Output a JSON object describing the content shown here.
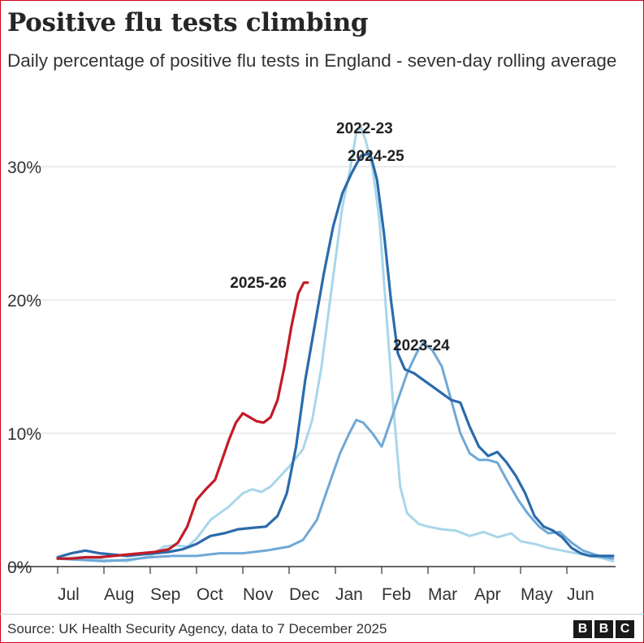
{
  "header": {
    "title": "Positive flu tests climbing",
    "subtitle": "Daily percentage of positive flu tests in England - seven-day rolling average"
  },
  "footer": {
    "source": "Source: UK Health Security Agency, data to 7 December 2025",
    "logo_letters": [
      "B",
      "B",
      "C"
    ]
  },
  "chart_data": {
    "type": "line",
    "title": "Positive flu tests climbing",
    "subtitle": "Daily percentage of positive flu tests in England - seven-day rolling average",
    "xlabel": "",
    "ylabel": "",
    "x_unit": "month (0 = start of Jul)",
    "categories": [
      "Jul",
      "Aug",
      "Sep",
      "Oct",
      "Nov",
      "Dec",
      "Jan",
      "Feb",
      "Mar",
      "Apr",
      "May",
      "Jun"
    ],
    "xlim": [
      0,
      12
    ],
    "ylim": [
      0,
      33
    ],
    "yticks": [
      0,
      10,
      20,
      30
    ],
    "ytick_labels": [
      "0%",
      "10%",
      "20%",
      "30%"
    ],
    "grid": true,
    "legend": "inline labels",
    "series": [
      {
        "name": "2022-23",
        "color": "#a9d6ea",
        "points": [
          [
            0,
            0.6
          ],
          [
            0.5,
            0.7
          ],
          [
            1,
            0.5
          ],
          [
            1.5,
            0.4
          ],
          [
            2,
            0.8
          ],
          [
            2.3,
            1.5
          ],
          [
            2.5,
            1.6
          ],
          [
            2.8,
            1.5
          ],
          [
            3,
            2.1
          ],
          [
            3.3,
            3.5
          ],
          [
            3.7,
            4.5
          ],
          [
            4,
            5.5
          ],
          [
            4.2,
            5.8
          ],
          [
            4.4,
            5.6
          ],
          [
            4.6,
            6.0
          ],
          [
            5,
            7.5
          ],
          [
            5.3,
            8.8
          ],
          [
            5.5,
            11
          ],
          [
            5.7,
            15
          ],
          [
            5.85,
            19
          ],
          [
            6,
            23
          ],
          [
            6.15,
            27
          ],
          [
            6.3,
            29.5
          ],
          [
            6.45,
            32.5
          ],
          [
            6.55,
            33.0
          ],
          [
            6.65,
            32
          ],
          [
            6.8,
            30
          ],
          [
            6.95,
            26
          ],
          [
            7.1,
            19
          ],
          [
            7.25,
            12
          ],
          [
            7.4,
            6
          ],
          [
            7.55,
            4
          ],
          [
            7.8,
            3.2
          ],
          [
            8,
            3.0
          ],
          [
            8.3,
            2.8
          ],
          [
            8.6,
            2.7
          ],
          [
            8.9,
            2.3
          ],
          [
            9.2,
            2.6
          ],
          [
            9.5,
            2.2
          ],
          [
            9.8,
            2.5
          ],
          [
            10,
            1.9
          ],
          [
            10.3,
            1.7
          ],
          [
            10.6,
            1.4
          ],
          [
            10.9,
            1.2
          ],
          [
            11.2,
            1.0
          ],
          [
            11.5,
            0.8
          ],
          [
            11.8,
            0.6
          ],
          [
            12,
            0.4
          ]
        ]
      },
      {
        "name": "2023-24",
        "color": "#6fa8d6",
        "points": [
          [
            0,
            0.6
          ],
          [
            0.5,
            0.5
          ],
          [
            1,
            0.4
          ],
          [
            1.5,
            0.5
          ],
          [
            2,
            0.7
          ],
          [
            2.5,
            0.8
          ],
          [
            3,
            0.8
          ],
          [
            3.5,
            1.0
          ],
          [
            4,
            1.0
          ],
          [
            4.5,
            1.2
          ],
          [
            5,
            1.5
          ],
          [
            5.3,
            2.0
          ],
          [
            5.6,
            3.5
          ],
          [
            5.85,
            6.0
          ],
          [
            6.1,
            8.5
          ],
          [
            6.3,
            10.0
          ],
          [
            6.45,
            11.0
          ],
          [
            6.6,
            10.8
          ],
          [
            6.8,
            10.0
          ],
          [
            7,
            9.0
          ],
          [
            7.15,
            10.5
          ],
          [
            7.35,
            12.5
          ],
          [
            7.55,
            14.5
          ],
          [
            7.75,
            16.0
          ],
          [
            7.9,
            16.8
          ],
          [
            8.1,
            16.2
          ],
          [
            8.3,
            15.0
          ],
          [
            8.5,
            12.5
          ],
          [
            8.7,
            10.0
          ],
          [
            8.9,
            8.5
          ],
          [
            9.1,
            8.0
          ],
          [
            9.3,
            8.0
          ],
          [
            9.5,
            7.8
          ],
          [
            9.7,
            6.5
          ],
          [
            9.95,
            5.0
          ],
          [
            10.15,
            4.0
          ],
          [
            10.4,
            3.0
          ],
          [
            10.6,
            2.5
          ],
          [
            10.85,
            2.6
          ],
          [
            11.1,
            1.8
          ],
          [
            11.35,
            1.2
          ],
          [
            11.6,
            0.9
          ],
          [
            11.8,
            0.7
          ],
          [
            12,
            0.6
          ]
        ]
      },
      {
        "name": "2024-25",
        "color": "#2b6bab",
        "points": [
          [
            0,
            0.7
          ],
          [
            0.3,
            1.0
          ],
          [
            0.6,
            1.2
          ],
          [
            0.9,
            1.0
          ],
          [
            1.2,
            0.9
          ],
          [
            1.5,
            0.8
          ],
          [
            1.8,
            0.9
          ],
          [
            2.1,
            1.0
          ],
          [
            2.4,
            1.1
          ],
          [
            2.7,
            1.3
          ],
          [
            3,
            1.7
          ],
          [
            3.3,
            2.3
          ],
          [
            3.6,
            2.5
          ],
          [
            3.9,
            2.8
          ],
          [
            4.2,
            2.9
          ],
          [
            4.5,
            3.0
          ],
          [
            4.75,
            3.8
          ],
          [
            4.95,
            5.5
          ],
          [
            5.15,
            9.0
          ],
          [
            5.35,
            14.0
          ],
          [
            5.55,
            18.0
          ],
          [
            5.75,
            22.0
          ],
          [
            5.95,
            25.5
          ],
          [
            6.15,
            28.0
          ],
          [
            6.35,
            29.5
          ],
          [
            6.55,
            30.8
          ],
          [
            6.75,
            31.0
          ],
          [
            6.9,
            29.0
          ],
          [
            7.05,
            25.0
          ],
          [
            7.2,
            20.0
          ],
          [
            7.35,
            16.0
          ],
          [
            7.5,
            14.8
          ],
          [
            7.7,
            14.5
          ],
          [
            7.9,
            14.0
          ],
          [
            8.1,
            13.5
          ],
          [
            8.3,
            13.0
          ],
          [
            8.5,
            12.5
          ],
          [
            8.7,
            12.3
          ],
          [
            8.9,
            10.5
          ],
          [
            9.1,
            9.0
          ],
          [
            9.3,
            8.3
          ],
          [
            9.5,
            8.6
          ],
          [
            9.7,
            7.8
          ],
          [
            9.9,
            6.8
          ],
          [
            10.1,
            5.5
          ],
          [
            10.3,
            3.8
          ],
          [
            10.5,
            3.0
          ],
          [
            10.7,
            2.7
          ],
          [
            10.9,
            2.2
          ],
          [
            11.1,
            1.4
          ],
          [
            11.3,
            1.0
          ],
          [
            11.5,
            0.8
          ],
          [
            11.7,
            0.8
          ],
          [
            12,
            0.8
          ]
        ]
      },
      {
        "name": "2025-26",
        "color": "#c31b26",
        "points": [
          [
            0,
            0.6
          ],
          [
            0.3,
            0.6
          ],
          [
            0.6,
            0.7
          ],
          [
            0.9,
            0.7
          ],
          [
            1.2,
            0.8
          ],
          [
            1.5,
            0.9
          ],
          [
            1.8,
            1.0
          ],
          [
            2.1,
            1.1
          ],
          [
            2.4,
            1.3
          ],
          [
            2.6,
            1.8
          ],
          [
            2.8,
            3.0
          ],
          [
            3,
            5.0
          ],
          [
            3.2,
            5.8
          ],
          [
            3.4,
            6.5
          ],
          [
            3.55,
            8.0
          ],
          [
            3.7,
            9.5
          ],
          [
            3.85,
            10.8
          ],
          [
            4,
            11.5
          ],
          [
            4.15,
            11.2
          ],
          [
            4.3,
            10.9
          ],
          [
            4.45,
            10.8
          ],
          [
            4.6,
            11.2
          ],
          [
            4.75,
            12.5
          ],
          [
            4.9,
            15.0
          ],
          [
            5.05,
            18.0
          ],
          [
            5.2,
            20.5
          ],
          [
            5.32,
            21.3
          ],
          [
            5.4,
            21.3
          ]
        ]
      }
    ]
  }
}
